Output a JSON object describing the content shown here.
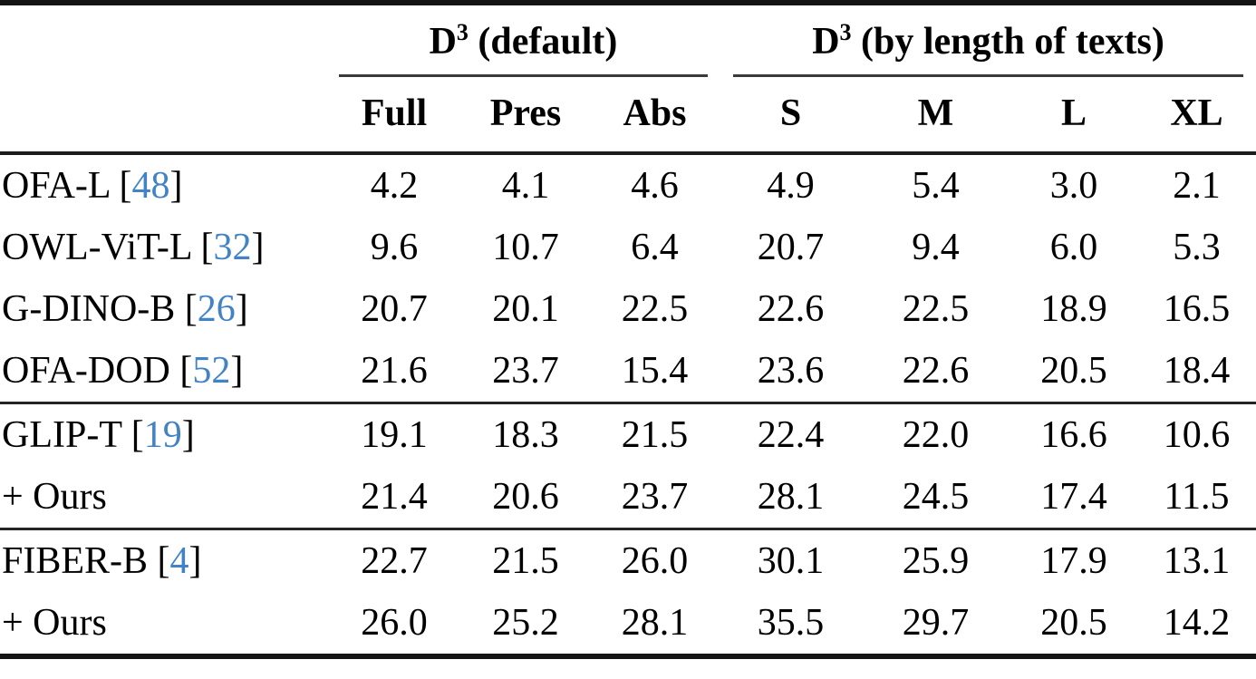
{
  "table": {
    "group_headers": [
      {
        "base": "D",
        "sup": "3",
        "rest": " (default)"
      },
      {
        "base": "D",
        "sup": "3",
        "rest": " (by length of texts)"
      }
    ],
    "columns": [
      "Full",
      "Pres",
      "Abs",
      "S",
      "M",
      "L",
      "XL"
    ],
    "sections": [
      {
        "rows": [
          {
            "label": "OFA-L",
            "cite": "48",
            "values": [
              "4.2",
              "4.1",
              "4.6",
              "4.9",
              "5.4",
              "3.0",
              "2.1"
            ]
          },
          {
            "label": "OWL-ViT-L",
            "cite": "32",
            "values": [
              "9.6",
              "10.7",
              "6.4",
              "20.7",
              "9.4",
              "6.0",
              "5.3"
            ]
          },
          {
            "label": "G-DINO-B",
            "cite": "26",
            "values": [
              "20.7",
              "20.1",
              "22.5",
              "22.6",
              "22.5",
              "18.9",
              "16.5"
            ]
          },
          {
            "label": "OFA-DOD",
            "cite": "52",
            "values": [
              "21.6",
              "23.7",
              "15.4",
              "23.6",
              "22.6",
              "20.5",
              "18.4"
            ]
          }
        ]
      },
      {
        "rows": [
          {
            "label": "GLIP-T",
            "cite": "19",
            "values": [
              "19.1",
              "18.3",
              "21.5",
              "22.4",
              "22.0",
              "16.6",
              "10.6"
            ]
          },
          {
            "label": "+ Ours",
            "cite": null,
            "values": [
              "21.4",
              "20.6",
              "23.7",
              "28.1",
              "24.5",
              "17.4",
              "11.5"
            ]
          }
        ]
      },
      {
        "rows": [
          {
            "label": "FIBER-B",
            "cite": "4",
            "values": [
              "22.7",
              "21.5",
              "26.0",
              "30.1",
              "25.9",
              "17.9",
              "13.1"
            ]
          },
          {
            "label": "+ Ours",
            "cite": null,
            "values": [
              "26.0",
              "25.2",
              "28.1",
              "35.5",
              "29.7",
              "20.5",
              "14.2"
            ]
          }
        ]
      }
    ],
    "colors": {
      "citation": "#4183c4",
      "rule": "#141414"
    }
  }
}
